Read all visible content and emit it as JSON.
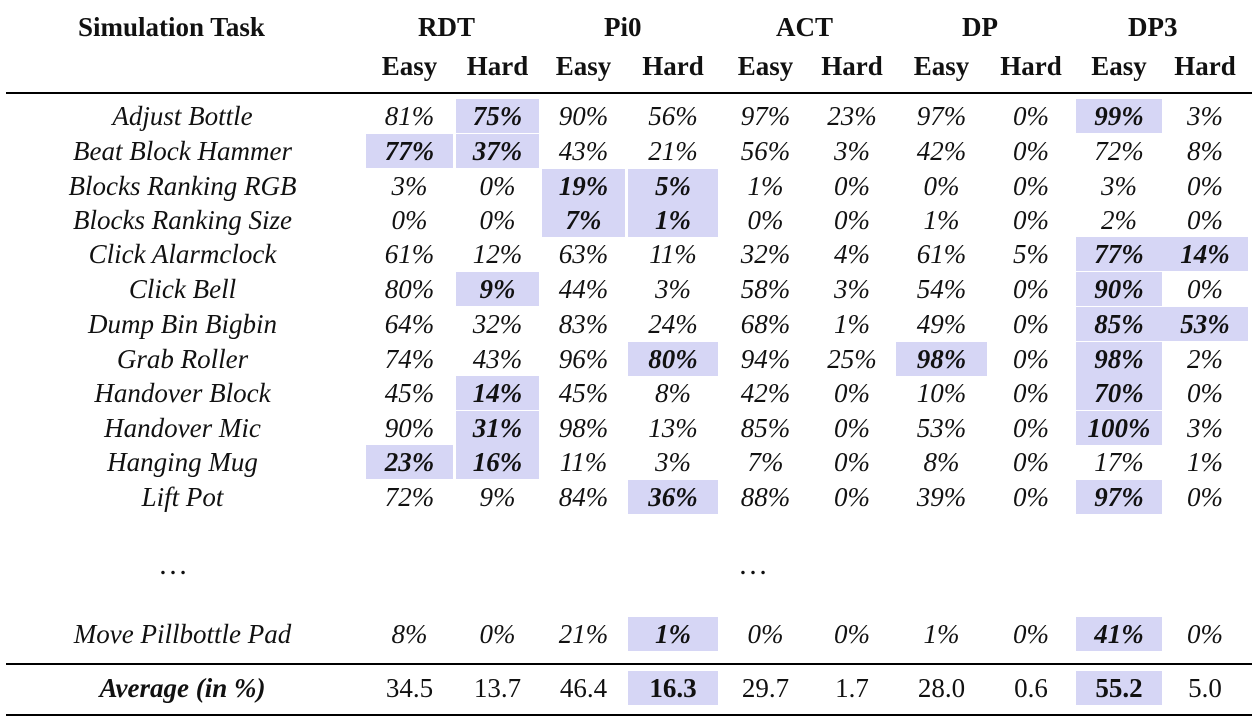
{
  "header": {
    "task_label": "Simulation Task",
    "methods": [
      "RDT",
      "Pi0",
      "ACT",
      "DP",
      "DP3"
    ],
    "sub": [
      "Easy",
      "Hard"
    ]
  },
  "rows": [
    {
      "task": "Adjust Bottle",
      "values": [
        "81%",
        "75%",
        "90%",
        "56%",
        "97%",
        "23%",
        "97%",
        "0%",
        "99%",
        "3%"
      ],
      "highlight": [
        1,
        8
      ]
    },
    {
      "task": "Beat Block Hammer",
      "values": [
        "77%",
        "37%",
        "43%",
        "21%",
        "56%",
        "3%",
        "42%",
        "0%",
        "72%",
        "8%"
      ],
      "highlight": [
        0,
        1
      ]
    },
    {
      "task": "Blocks Ranking RGB",
      "values": [
        "3%",
        "0%",
        "19%",
        "5%",
        "1%",
        "0%",
        "0%",
        "0%",
        "3%",
        "0%"
      ],
      "highlight": [
        2,
        3
      ]
    },
    {
      "task": "Blocks Ranking Size",
      "values": [
        "0%",
        "0%",
        "7%",
        "1%",
        "0%",
        "0%",
        "1%",
        "0%",
        "2%",
        "0%"
      ],
      "highlight": [
        2,
        3
      ]
    },
    {
      "task": "Click Alarmclock",
      "values": [
        "61%",
        "12%",
        "63%",
        "11%",
        "32%",
        "4%",
        "61%",
        "5%",
        "77%",
        "14%"
      ],
      "highlight": [
        8,
        9
      ]
    },
    {
      "task": "Click Bell",
      "values": [
        "80%",
        "9%",
        "44%",
        "3%",
        "58%",
        "3%",
        "54%",
        "0%",
        "90%",
        "0%"
      ],
      "highlight": [
        1,
        8
      ]
    },
    {
      "task": "Dump Bin Bigbin",
      "values": [
        "64%",
        "32%",
        "83%",
        "24%",
        "68%",
        "1%",
        "49%",
        "0%",
        "85%",
        "53%"
      ],
      "highlight": [
        8,
        9
      ]
    },
    {
      "task": "Grab Roller",
      "values": [
        "74%",
        "43%",
        "96%",
        "80%",
        "94%",
        "25%",
        "98%",
        "0%",
        "98%",
        "2%"
      ],
      "highlight": [
        3,
        6,
        8
      ]
    },
    {
      "task": "Handover Block",
      "values": [
        "45%",
        "14%",
        "45%",
        "8%",
        "42%",
        "0%",
        "10%",
        "0%",
        "70%",
        "0%"
      ],
      "highlight": [
        1,
        8
      ]
    },
    {
      "task": "Handover Mic",
      "values": [
        "90%",
        "31%",
        "98%",
        "13%",
        "85%",
        "0%",
        "53%",
        "0%",
        "100%",
        "3%"
      ],
      "highlight": [
        1,
        8
      ]
    },
    {
      "task": "Hanging Mug",
      "values": [
        "23%",
        "16%",
        "11%",
        "3%",
        "7%",
        "0%",
        "8%",
        "0%",
        "17%",
        "1%"
      ],
      "highlight": [
        0,
        1
      ]
    },
    {
      "task": "Lift Pot",
      "values": [
        "72%",
        "9%",
        "84%",
        "36%",
        "88%",
        "0%",
        "39%",
        "0%",
        "97%",
        "0%"
      ],
      "highlight": [
        3,
        8
      ]
    }
  ],
  "ellipsis": "…",
  "last_row": {
    "task": "Move Pillbottle Pad",
    "values": [
      "8%",
      "0%",
      "21%",
      "1%",
      "0%",
      "0%",
      "1%",
      "0%",
      "41%",
      "0%"
    ],
    "highlight": [
      3,
      8
    ]
  },
  "average": {
    "task": "Average (in %)",
    "values": [
      "34.5",
      "13.7",
      "46.4",
      "16.3",
      "29.7",
      "1.7",
      "28.0",
      "0.6",
      "55.2",
      "5.0"
    ],
    "highlight": [
      3,
      8
    ]
  },
  "colors": {
    "highlight": "#d6d6f5",
    "rule": "#000000"
  }
}
